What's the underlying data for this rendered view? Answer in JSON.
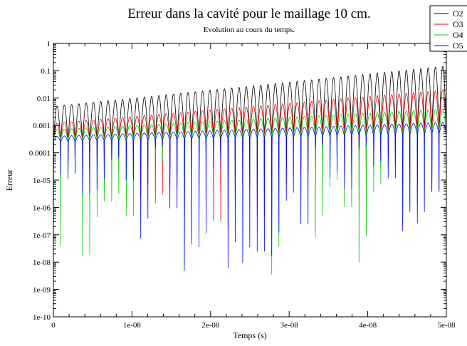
{
  "chart_data": {
    "type": "line",
    "title": "Erreur dans la cavité pour le maillage 10 cm.",
    "subtitle": "Evolution au cours du temps.",
    "xlabel": "Temps (s)",
    "ylabel": "Erreur",
    "xlim": [
      0,
      5e-08
    ],
    "ylim": [
      1e-10,
      1
    ],
    "yscale": "log",
    "x_ticks": [
      0,
      1e-08,
      2e-08,
      3e-08,
      4e-08,
      5e-08
    ],
    "x_tick_labels": [
      "0",
      "1e-08",
      "2e-08",
      "3e-08",
      "4e-08",
      "5e-08"
    ],
    "y_ticks": [
      1e-10,
      1e-09,
      1e-08,
      1e-07,
      1e-06,
      1e-05,
      0.0001,
      0.001,
      0.01,
      0.1,
      1
    ],
    "y_tick_labels": [
      "1e-10",
      "1e-09",
      "1e-08",
      "1e-07",
      "1e-06",
      "1e-05",
      "0.0001",
      "0.001",
      "0.01",
      "0.1",
      "1"
    ],
    "grid": false,
    "legend": "top-right",
    "oscillation_cycles": 54,
    "series": [
      {
        "name": "O2",
        "color": "#000000",
        "peak_start": 0.005,
        "peak_end": 0.15,
        "trough_start": 0.0003,
        "trough_end": 0.001,
        "min_dip": 1e-05
      },
      {
        "name": "O3",
        "color": "#ff0000",
        "peak_start": 0.0012,
        "peak_end": 0.02,
        "trough_start": 0.0003,
        "trough_end": 0.0008,
        "min_dip": 1e-07
      },
      {
        "name": "O4",
        "color": "#00cc00",
        "peak_start": 0.0007,
        "peak_end": 0.004,
        "trough_start": 0.0003,
        "trough_end": 0.0006,
        "min_dip": 3e-09
      },
      {
        "name": "O5",
        "color": "#0000ff",
        "peak_start": 0.0004,
        "peak_end": 0.0013,
        "trough_start": 0.00025,
        "trough_end": 0.0005,
        "min_dip": 6e-10
      }
    ]
  }
}
